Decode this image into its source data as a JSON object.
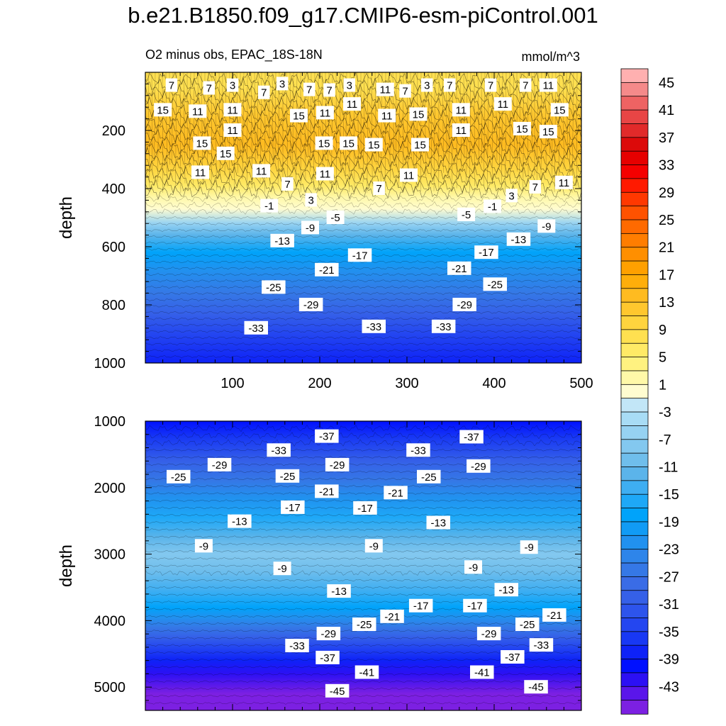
{
  "title": "b.e21.B1850.f09_g17.CMIP6-esm-piControl.001",
  "subtitle_left": "O2 minus obs, EPAC_18S-18N",
  "subtitle_right": "mmol/m^3",
  "chart_data": [
    {
      "type": "heatmap",
      "panel": "upper",
      "variable": "O2 minus obs",
      "region": "EPAC_18S-18N",
      "units": "mmol/m^3",
      "ylabel": "depth",
      "xlabel": "",
      "xlim": [
        0,
        500
      ],
      "ylim": [
        0,
        1000
      ],
      "y_inverted": true,
      "xticks": [
        100,
        200,
        300,
        400,
        500
      ],
      "yticks": [
        200,
        400,
        600,
        800,
        1000
      ],
      "depth_profile": [
        {
          "depth": 50,
          "value": 9
        },
        {
          "depth": 150,
          "value": 13
        },
        {
          "depth": 250,
          "value": 15
        },
        {
          "depth": 330,
          "value": 11
        },
        {
          "depth": 390,
          "value": 7
        },
        {
          "depth": 430,
          "value": 3
        },
        {
          "depth": 470,
          "value": 0
        },
        {
          "depth": 520,
          "value": -5
        },
        {
          "depth": 560,
          "value": -11
        },
        {
          "depth": 620,
          "value": -17
        },
        {
          "depth": 680,
          "value": -21
        },
        {
          "depth": 760,
          "value": -25
        },
        {
          "depth": 830,
          "value": -29
        },
        {
          "depth": 900,
          "value": -33
        },
        {
          "depth": 1000,
          "value": -37
        }
      ],
      "contour_labels": [
        {
          "x": 30,
          "y": 45,
          "v": "7"
        },
        {
          "x": 73,
          "y": 55,
          "v": "7"
        },
        {
          "x": 100,
          "y": 45,
          "v": "3"
        },
        {
          "x": 136,
          "y": 70,
          "v": "7"
        },
        {
          "x": 157,
          "y": 40,
          "v": "3"
        },
        {
          "x": 188,
          "y": 60,
          "v": "7"
        },
        {
          "x": 211,
          "y": 62,
          "v": "7"
        },
        {
          "x": 234,
          "y": 45,
          "v": "3"
        },
        {
          "x": 275,
          "y": 60,
          "v": "11"
        },
        {
          "x": 298,
          "y": 65,
          "v": "7"
        },
        {
          "x": 323,
          "y": 45,
          "v": "3"
        },
        {
          "x": 349,
          "y": 45,
          "v": "7"
        },
        {
          "x": 396,
          "y": 45,
          "v": "7"
        },
        {
          "x": 436,
          "y": 45,
          "v": "7"
        },
        {
          "x": 462,
          "y": 45,
          "v": "11"
        },
        {
          "x": 20,
          "y": 130,
          "v": "15"
        },
        {
          "x": 60,
          "y": 135,
          "v": "11"
        },
        {
          "x": 100,
          "y": 130,
          "v": "11"
        },
        {
          "x": 176,
          "y": 150,
          "v": "15"
        },
        {
          "x": 206,
          "y": 140,
          "v": "11"
        },
        {
          "x": 237,
          "y": 110,
          "v": "11"
        },
        {
          "x": 277,
          "y": 150,
          "v": "11"
        },
        {
          "x": 313,
          "y": 145,
          "v": "15"
        },
        {
          "x": 362,
          "y": 130,
          "v": "11"
        },
        {
          "x": 410,
          "y": 110,
          "v": "11"
        },
        {
          "x": 475,
          "y": 130,
          "v": "15"
        },
        {
          "x": 100,
          "y": 200,
          "v": "11"
        },
        {
          "x": 362,
          "y": 200,
          "v": "11"
        },
        {
          "x": 432,
          "y": 195,
          "v": "15"
        },
        {
          "x": 462,
          "y": 205,
          "v": "15"
        },
        {
          "x": 65,
          "y": 245,
          "v": "15"
        },
        {
          "x": 92,
          "y": 280,
          "v": "15"
        },
        {
          "x": 205,
          "y": 245,
          "v": "15"
        },
        {
          "x": 233,
          "y": 245,
          "v": "15"
        },
        {
          "x": 262,
          "y": 250,
          "v": "15"
        },
        {
          "x": 315,
          "y": 250,
          "v": "15"
        },
        {
          "x": 63,
          "y": 345,
          "v": "11"
        },
        {
          "x": 133,
          "y": 340,
          "v": "11"
        },
        {
          "x": 206,
          "y": 350,
          "v": "11"
        },
        {
          "x": 302,
          "y": 355,
          "v": "11"
        },
        {
          "x": 480,
          "y": 380,
          "v": "11"
        },
        {
          "x": 163,
          "y": 385,
          "v": "7"
        },
        {
          "x": 268,
          "y": 400,
          "v": "7"
        },
        {
          "x": 447,
          "y": 395,
          "v": "7"
        },
        {
          "x": 190,
          "y": 440,
          "v": "3"
        },
        {
          "x": 420,
          "y": 425,
          "v": "3"
        },
        {
          "x": 142,
          "y": 460,
          "v": "-1"
        },
        {
          "x": 398,
          "y": 462,
          "v": "-1"
        },
        {
          "x": 218,
          "y": 500,
          "v": "-5"
        },
        {
          "x": 368,
          "y": 490,
          "v": "-5"
        },
        {
          "x": 189,
          "y": 535,
          "v": "-9"
        },
        {
          "x": 460,
          "y": 530,
          "v": "-9"
        },
        {
          "x": 157,
          "y": 580,
          "v": "-13"
        },
        {
          "x": 428,
          "y": 575,
          "v": "-13"
        },
        {
          "x": 246,
          "y": 630,
          "v": "-17"
        },
        {
          "x": 391,
          "y": 620,
          "v": "-17"
        },
        {
          "x": 208,
          "y": 680,
          "v": "-21"
        },
        {
          "x": 360,
          "y": 675,
          "v": "-21"
        },
        {
          "x": 147,
          "y": 740,
          "v": "-25"
        },
        {
          "x": 401,
          "y": 730,
          "v": "-25"
        },
        {
          "x": 190,
          "y": 800,
          "v": "-29"
        },
        {
          "x": 366,
          "y": 800,
          "v": "-29"
        },
        {
          "x": 127,
          "y": 880,
          "v": "-33"
        },
        {
          "x": 262,
          "y": 875,
          "v": "-33"
        },
        {
          "x": 342,
          "y": 875,
          "v": "-33"
        }
      ]
    },
    {
      "type": "heatmap",
      "panel": "lower",
      "variable": "O2 minus obs",
      "region": "EPAC_18S-18N",
      "units": "mmol/m^3",
      "ylabel": "depth",
      "xlabel": "",
      "xlim": [
        0,
        500
      ],
      "ylim": [
        1000,
        5350
      ],
      "y_inverted": true,
      "yticks": [
        1000,
        2000,
        3000,
        4000,
        5000
      ],
      "depth_profile": [
        {
          "depth": 1000,
          "value": -39
        },
        {
          "depth": 1250,
          "value": -35
        },
        {
          "depth": 1600,
          "value": -29
        },
        {
          "depth": 1900,
          "value": -25
        },
        {
          "depth": 2150,
          "value": -21
        },
        {
          "depth": 2450,
          "value": -15
        },
        {
          "depth": 2750,
          "value": -11
        },
        {
          "depth": 3000,
          "value": -7
        },
        {
          "depth": 3250,
          "value": -9
        },
        {
          "depth": 3550,
          "value": -13
        },
        {
          "depth": 3800,
          "value": -17
        },
        {
          "depth": 3950,
          "value": -21
        },
        {
          "depth": 4100,
          "value": -25
        },
        {
          "depth": 4250,
          "value": -29
        },
        {
          "depth": 4400,
          "value": -33
        },
        {
          "depth": 4600,
          "value": -37
        },
        {
          "depth": 4800,
          "value": -41
        },
        {
          "depth": 5100,
          "value": -45
        },
        {
          "depth": 5350,
          "value": -47
        }
      ],
      "contour_labels": [
        {
          "x": 208,
          "y": 1230,
          "v": "-37"
        },
        {
          "x": 374,
          "y": 1240,
          "v": "-37"
        },
        {
          "x": 153,
          "y": 1440,
          "v": "-33"
        },
        {
          "x": 313,
          "y": 1440,
          "v": "-33"
        },
        {
          "x": 85,
          "y": 1660,
          "v": "-29"
        },
        {
          "x": 220,
          "y": 1660,
          "v": "-29"
        },
        {
          "x": 382,
          "y": 1680,
          "v": "-29"
        },
        {
          "x": 38,
          "y": 1840,
          "v": "-25"
        },
        {
          "x": 163,
          "y": 1830,
          "v": "-25"
        },
        {
          "x": 325,
          "y": 1840,
          "v": "-25"
        },
        {
          "x": 208,
          "y": 2060,
          "v": "-21"
        },
        {
          "x": 287,
          "y": 2080,
          "v": "-21"
        },
        {
          "x": 169,
          "y": 2300,
          "v": "-17"
        },
        {
          "x": 252,
          "y": 2310,
          "v": "-17"
        },
        {
          "x": 108,
          "y": 2510,
          "v": "-13"
        },
        {
          "x": 336,
          "y": 2530,
          "v": "-13"
        },
        {
          "x": 67,
          "y": 2880,
          "v": "-9"
        },
        {
          "x": 262,
          "y": 2880,
          "v": "-9"
        },
        {
          "x": 440,
          "y": 2900,
          "v": "-9"
        },
        {
          "x": 157,
          "y": 3220,
          "v": "-9"
        },
        {
          "x": 376,
          "y": 3200,
          "v": "-9"
        },
        {
          "x": 222,
          "y": 3560,
          "v": "-13"
        },
        {
          "x": 414,
          "y": 3540,
          "v": "-13"
        },
        {
          "x": 316,
          "y": 3780,
          "v": "-17"
        },
        {
          "x": 378,
          "y": 3780,
          "v": "-17"
        },
        {
          "x": 283,
          "y": 3940,
          "v": "-21"
        },
        {
          "x": 469,
          "y": 3920,
          "v": "-21"
        },
        {
          "x": 251,
          "y": 4060,
          "v": "-25"
        },
        {
          "x": 438,
          "y": 4060,
          "v": "-25"
        },
        {
          "x": 210,
          "y": 4200,
          "v": "-29"
        },
        {
          "x": 394,
          "y": 4200,
          "v": "-29"
        },
        {
          "x": 174,
          "y": 4380,
          "v": "-33"
        },
        {
          "x": 454,
          "y": 4370,
          "v": "-33"
        },
        {
          "x": 209,
          "y": 4560,
          "v": "-37"
        },
        {
          "x": 421,
          "y": 4550,
          "v": "-37"
        },
        {
          "x": 254,
          "y": 4780,
          "v": "-41"
        },
        {
          "x": 386,
          "y": 4780,
          "v": "-41"
        },
        {
          "x": 220,
          "y": 5060,
          "v": "-45"
        },
        {
          "x": 448,
          "y": 5000,
          "v": "-45"
        }
      ]
    }
  ],
  "colorbar": {
    "units": "mmol/m^3",
    "levels_top_to_bottom": [
      47,
      45,
      43,
      41,
      39,
      37,
      35,
      33,
      31,
      29,
      27,
      25,
      23,
      21,
      19,
      17,
      15,
      13,
      11,
      9,
      7,
      5,
      3,
      1,
      -1,
      -3,
      -5,
      -7,
      -9,
      -11,
      -13,
      -15,
      -17,
      -19,
      -21,
      -23,
      -25,
      -27,
      -29,
      -31,
      -33,
      -35,
      -37,
      -39,
      -41,
      -43,
      -45
    ],
    "tick_labels": [
      "45",
      "41",
      "37",
      "33",
      "29",
      "25",
      "21",
      "17",
      "13",
      "9",
      "5",
      "1",
      "-3",
      "-7",
      "-11",
      "-15",
      "-19",
      "-23",
      "-27",
      "-31",
      "-35",
      "-39",
      "-43"
    ],
    "colors_top_to_bottom": [
      "#ffb0b0",
      "#f58a8a",
      "#ee6363",
      "#e84545",
      "#e12a2a",
      "#dc0a0a",
      "#e60000",
      "#f50000",
      "#ff1a00",
      "#ff3800",
      "#ff5200",
      "#ff6a00",
      "#ff7d00",
      "#ff8f00",
      "#ffa000",
      "#ffae0a",
      "#ffbb20",
      "#ffc72e",
      "#ffd43e",
      "#ffe050",
      "#ffea66",
      "#fff280",
      "#fff8a8",
      "#fffcd0",
      "#c2e6f7",
      "#a8dcf5",
      "#96d2f2",
      "#83c8ef",
      "#6fbeec",
      "#5bb4ea",
      "#3eaef2",
      "#1ea8f7",
      "#00a3fa",
      "#119bf5",
      "#2191ef",
      "#2e85ea",
      "#3578e6",
      "#3a6ce6",
      "#3560e8",
      "#2d54ec",
      "#2446f0",
      "#1838f4",
      "#0e22f7",
      "#0010ff",
      "#2c10f4",
      "#5a16ea",
      "#7c20e2"
    ]
  }
}
